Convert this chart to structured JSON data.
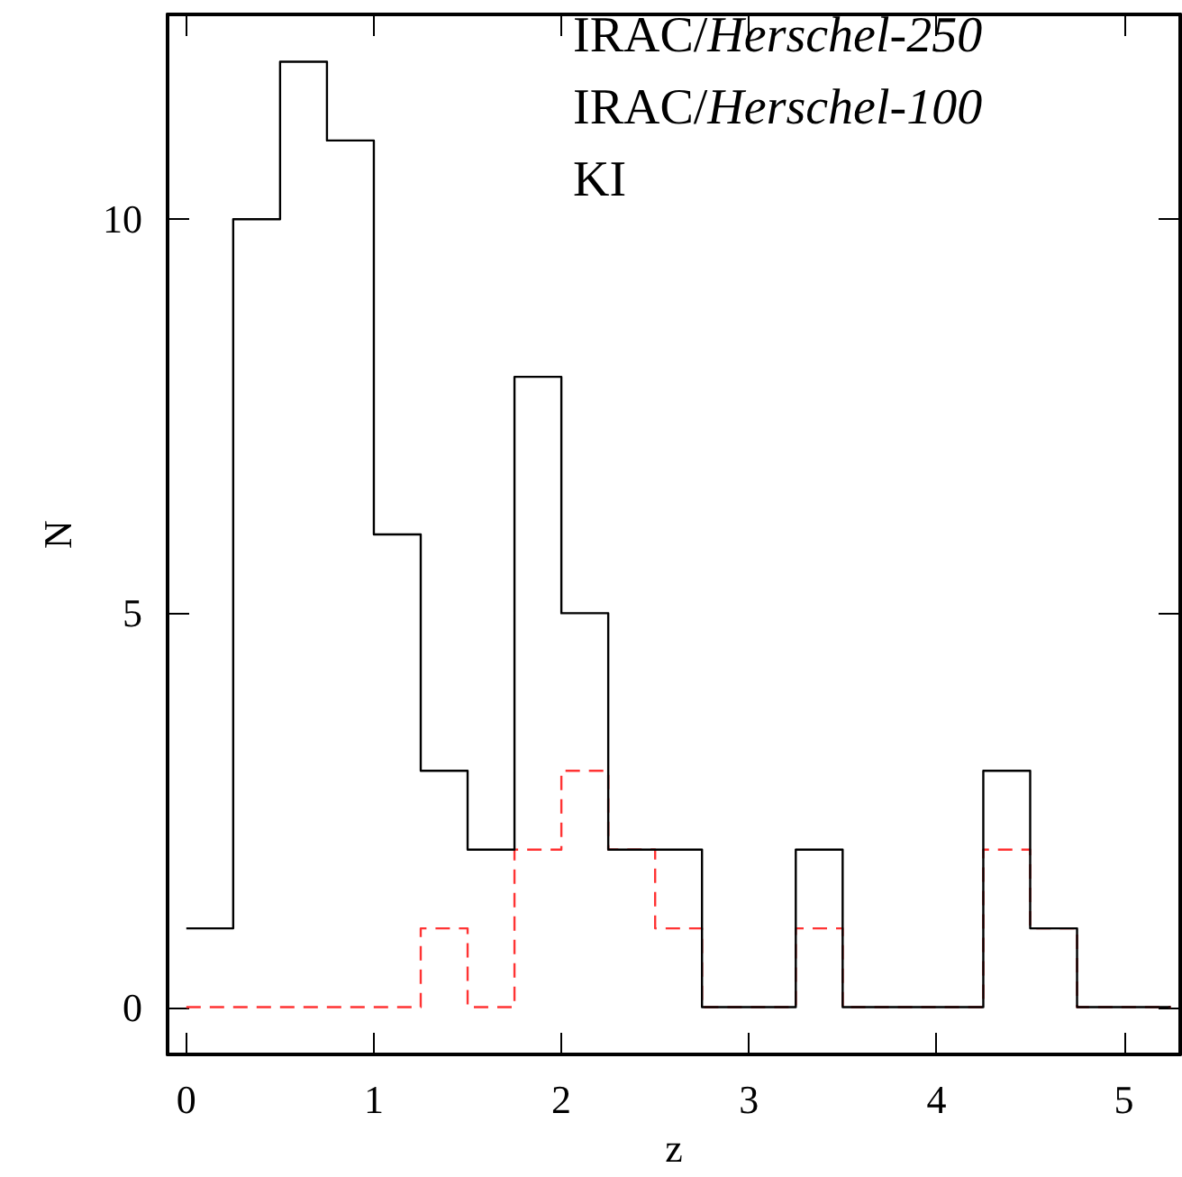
{
  "chart_data": {
    "type": "histogram",
    "xlabel": "z",
    "ylabel": "N",
    "bins": [
      0,
      0.25,
      0.5,
      0.75,
      1,
      1.25,
      1.5,
      1.75,
      2,
      2.25,
      2.5,
      2.75,
      3,
      3.25,
      3.5,
      3.75,
      4,
      4.25,
      4.5,
      4.75,
      5,
      5.25
    ],
    "series": [
      {
        "color": "#000000",
        "line_style": "solid",
        "values": [
          1,
          10,
          12,
          11,
          6,
          3,
          2,
          8,
          5,
          2,
          2,
          0,
          0,
          2,
          0,
          0,
          0,
          3,
          1,
          0,
          0
        ]
      },
      {
        "color": "#ff3333",
        "line_style": "dashed",
        "values": [
          0,
          0,
          0,
          0,
          0,
          1,
          0,
          2,
          3,
          2,
          1,
          0,
          0,
          1,
          0,
          0,
          0,
          2,
          1,
          0,
          0
        ]
      }
    ],
    "annotations": [
      "IRAC/Herschel-250",
      "IRAC/Herschel-100",
      "KI"
    ],
    "xlim": [
      -0.1,
      5.3
    ],
    "ylim": [
      -0.6,
      12.6
    ],
    "xticks": [
      0,
      1,
      2,
      3,
      4,
      5
    ],
    "yticks": [
      0,
      5,
      10
    ]
  }
}
